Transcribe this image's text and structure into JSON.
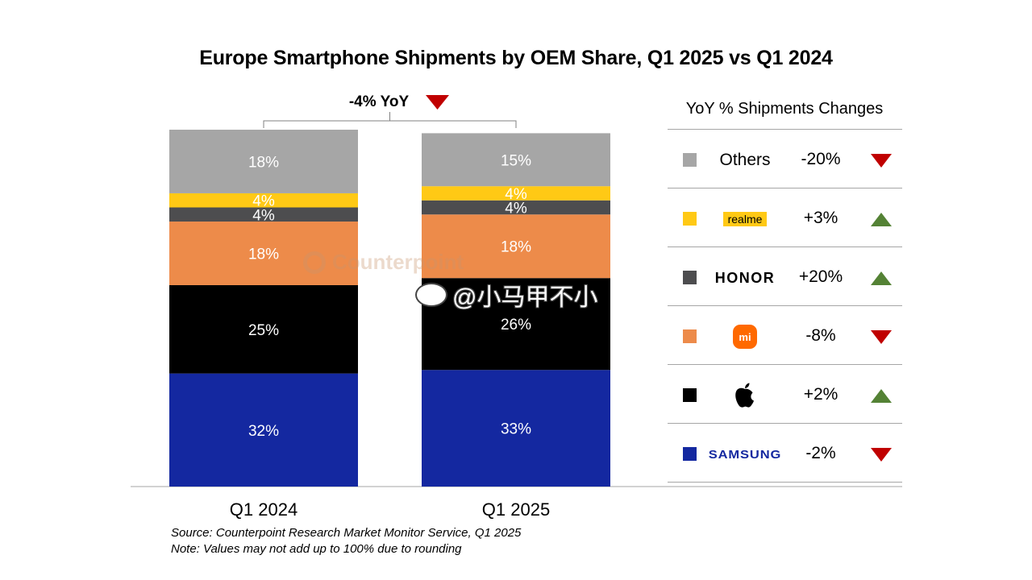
{
  "title": "Europe Smartphone Shipments by OEM Share, Q1 2025 vs Q1 2024",
  "yoy_total": "-4% YoY",
  "legend_header": "YoY % Shipments Changes",
  "notes": {
    "source": "Source: Counterpoint Research Market Monitor Service, Q1 2025",
    "note": "Note: Values may not add up to 100% due to rounding"
  },
  "watermark": {
    "counterpoint": "Counterpoint",
    "weibo": "@小马甲不小"
  },
  "colors": {
    "others": "#a6a6a6",
    "realme": "#ffc915",
    "honor": "#4d4d4f",
    "xiaomi": "#ed8b4a",
    "apple": "#000000",
    "samsung": "#1428a0",
    "down": "#c00000",
    "up": "#548235"
  },
  "legend": [
    {
      "brand": "Others",
      "icon": "text",
      "yoy": "-20%",
      "direction": "down",
      "color": "#a6a6a6"
    },
    {
      "brand": "realme",
      "icon": "realme-logo",
      "yoy": "+3%",
      "direction": "up",
      "color": "#ffc915"
    },
    {
      "brand": "HONOR",
      "icon": "honor-logo",
      "yoy": "+20%",
      "direction": "up",
      "color": "#4d4d4f"
    },
    {
      "brand": "mi",
      "icon": "xiaomi-logo",
      "yoy": "-8%",
      "direction": "down",
      "color": "#ed8b4a"
    },
    {
      "brand": "",
      "icon": "apple-logo",
      "yoy": "+2%",
      "direction": "up",
      "color": "#000000"
    },
    {
      "brand": "SAMSUNG",
      "icon": "samsung-logo",
      "yoy": "-2%",
      "direction": "down",
      "color": "#1428a0"
    }
  ],
  "chart_data": {
    "type": "bar",
    "stacked": true,
    "normalized": true,
    "categories": [
      "Q1 2024",
      "Q1 2025"
    ],
    "series": [
      {
        "name": "SAMSUNG",
        "values": [
          32,
          33
        ],
        "labels": [
          "32%",
          "33%"
        ],
        "color": "#1428a0"
      },
      {
        "name": "Apple",
        "values": [
          25,
          26
        ],
        "labels": [
          "25%",
          "26%"
        ],
        "color": "#000000"
      },
      {
        "name": "Xiaomi",
        "values": [
          18,
          18
        ],
        "labels": [
          "18%",
          "18%"
        ],
        "color": "#ed8b4a"
      },
      {
        "name": "HONOR",
        "values": [
          4,
          4
        ],
        "labels": [
          "4%",
          "4%"
        ],
        "color": "#4d4d4f"
      },
      {
        "name": "realme",
        "values": [
          4,
          4
        ],
        "labels": [
          "4%",
          "4%"
        ],
        "color": "#ffc915"
      },
      {
        "name": "Others",
        "values": [
          18,
          15
        ],
        "labels": [
          "18%",
          "15%"
        ],
        "color": "#a6a6a6"
      }
    ],
    "title": "Europe Smartphone Shipments by OEM Share, Q1 2025 vs Q1 2024",
    "xlabel": "",
    "ylabel": "",
    "ylim": [
      0,
      101
    ],
    "grid": false,
    "legend": "right"
  }
}
